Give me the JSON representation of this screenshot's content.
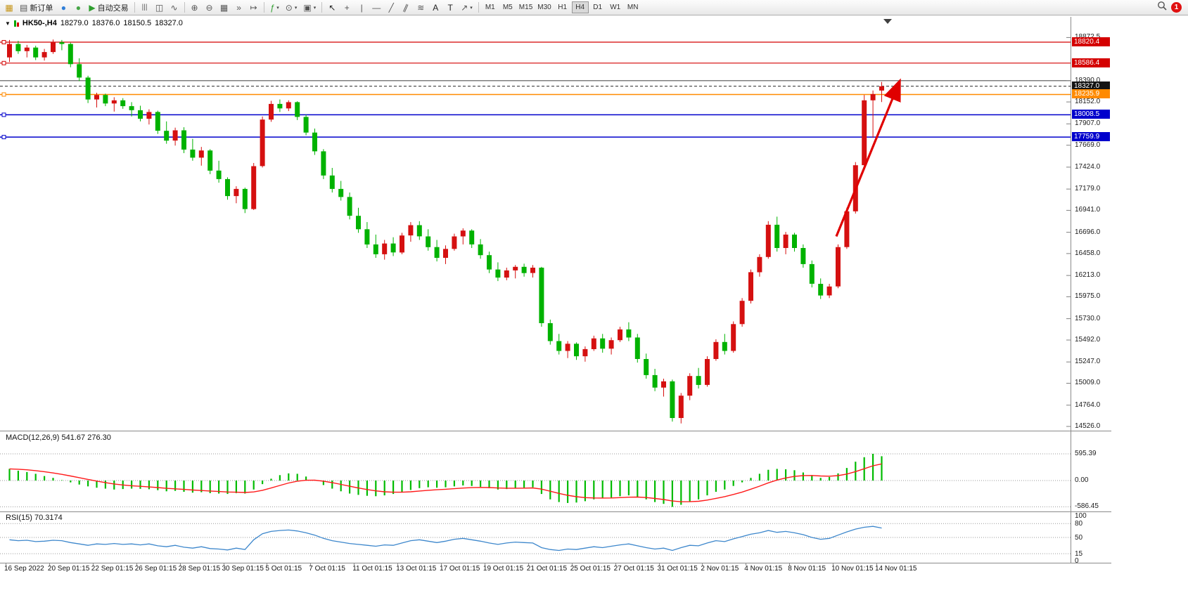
{
  "toolbar": {
    "new_order_label": "新订单",
    "autotrading_label": "自动交易",
    "timeframes": [
      "M1",
      "M5",
      "M15",
      "M30",
      "H1",
      "H4",
      "D1",
      "W1",
      "MN"
    ],
    "active_timeframe": "H4",
    "notification_badge": "1"
  },
  "icons": {
    "chart_window": "▦",
    "order_doc": "▤",
    "profile_dot": "●",
    "community_dot": "●",
    "play": "▶",
    "chart_bars": "|||",
    "chart_candles": "◫",
    "chart_line": "∿",
    "zoom_in": "⊕",
    "zoom_out": "⊖",
    "tile": "▦",
    "auto_scroll": "»",
    "chart_shift": "↦",
    "indicators": "ƒ",
    "periods": "⊙",
    "templates": "▣",
    "cursor": "↖",
    "crosshair": "+",
    "vline": "|",
    "hline": "—",
    "trendline": "╱",
    "channel": "∥",
    "fibonacci": "≋",
    "text": "A",
    "label": "T",
    "arrow_tool": "↗",
    "dropdown_arrow": "▾",
    "menu_arrow": "▼"
  },
  "chart": {
    "symbol_period": "HK50-,H4",
    "open": "18279.0",
    "high": "18376.0",
    "low": "18150.5",
    "close": "18327.0"
  },
  "price_axis": {
    "grid_labels": [
      {
        "p": 18872.5,
        "t": "18872.5"
      },
      {
        "p": 18390.0,
        "t": "18390.0"
      },
      {
        "p": 18152.0,
        "t": "18152.0"
      },
      {
        "p": 17907.0,
        "t": "17907.0"
      },
      {
        "p": 17669.0,
        "t": "17669.0"
      },
      {
        "p": 17424.0,
        "t": "17424.0"
      },
      {
        "p": 17179.0,
        "t": "17179.0"
      },
      {
        "p": 16941.0,
        "t": "16941.0"
      },
      {
        "p": 16696.0,
        "t": "16696.0"
      },
      {
        "p": 16458.0,
        "t": "16458.0"
      },
      {
        "p": 16213.0,
        "t": "16213.0"
      },
      {
        "p": 15975.0,
        "t": "15975.0"
      },
      {
        "p": 15730.0,
        "t": "15730.0"
      },
      {
        "p": 15492.0,
        "t": "15492.0"
      },
      {
        "p": 15247.0,
        "t": "15247.0"
      },
      {
        "p": 15009.0,
        "t": "15009.0"
      },
      {
        "p": 14764.0,
        "t": "14764.0"
      },
      {
        "p": 14526.0,
        "t": "14526.0"
      }
    ],
    "tag_labels": [
      {
        "p": 18820.4,
        "t": "18820.4",
        "bg": "#d40000"
      },
      {
        "p": 18586.4,
        "t": "18586.4",
        "bg": "#d40000"
      },
      {
        "p": 18327.0,
        "t": "18327.0",
        "bg": "#141414"
      },
      {
        "p": 18235.9,
        "t": "18235.9",
        "bg": "#ff8a00"
      },
      {
        "p": 18008.5,
        "t": "18008.5",
        "bg": "#0000cc"
      },
      {
        "p": 17759.9,
        "t": "17759.9",
        "bg": "#0000cc"
      }
    ]
  },
  "panels": {
    "macd": {
      "label": "MACD(12,26,9)",
      "value_main": "541.67",
      "value_signal": "276.30",
      "axis": [
        {
          "v": 595.39,
          "t": "595.39"
        },
        {
          "v": 0,
          "t": "0.00"
        },
        {
          "v": -586.45,
          "t": "-586.45"
        }
      ]
    },
    "rsi": {
      "label": "RSI(15)",
      "value": "70.3174",
      "axis": [
        {
          "v": 100,
          "t": "100"
        },
        {
          "v": 80,
          "t": "80"
        },
        {
          "v": 50,
          "t": "50"
        },
        {
          "v": 15,
          "t": "15"
        },
        {
          "v": 0,
          "t": "0"
        }
      ],
      "dotted_levels": [
        80,
        50,
        15
      ]
    }
  },
  "time_axis": [
    "16 Sep 2022",
    "20 Sep 01:15",
    "22 Sep 01:15",
    "26 Sep 01:15",
    "28 Sep 01:15",
    "30 Sep 01:15",
    "5 Oct 01:15",
    "7 Oct 01:15",
    "11 Oct 01:15",
    "13 Oct 01:15",
    "17 Oct 01:15",
    "19 Oct 01:15",
    "21 Oct 01:15",
    "25 Oct 01:15",
    "27 Oct 01:15",
    "31 Oct 01:15",
    "2 Nov 01:15",
    "4 Nov 01:15",
    "8 Nov 01:15",
    "10 Nov 01:15",
    "14 Nov 01:15"
  ],
  "chart_data": {
    "type": "candlestick",
    "symbol": "HK50-",
    "timeframe": "H4",
    "ylim": [
      14505,
      18990
    ],
    "colors": {
      "up": "#d51010",
      "down": "#00b200",
      "macd_bar": "#00bb00",
      "macd_signal": "#ff1a1a",
      "rsi_line": "#3d87cc",
      "arrow": "#e00000"
    },
    "hlines": [
      {
        "price": 18820.4,
        "color": "#d40000",
        "style": "solid",
        "w": 1.2,
        "handle": true
      },
      {
        "price": 18586.4,
        "color": "#d40000",
        "style": "solid",
        "w": 1.2,
        "handle": true
      },
      {
        "price": 18390.5,
        "color": "#555555",
        "style": "solid",
        "w": 1.2,
        "handle": false
      },
      {
        "price": 18327.0,
        "color": "#222222",
        "style": "dashed",
        "w": 1,
        "handle": false
      },
      {
        "price": 18235.9,
        "color": "#ff8a00",
        "style": "solid",
        "w": 1.5,
        "handle": true
      },
      {
        "price": 18008.5,
        "color": "#0000cc",
        "style": "solid",
        "w": 1.5,
        "handle": true
      },
      {
        "price": 17759.9,
        "color": "#0000cc",
        "style": "solid",
        "w": 1.5,
        "handle": true
      }
    ],
    "arrow": {
      "from": {
        "i": 94.8,
        "p": 16650
      },
      "to": {
        "i": 102,
        "p": 18370
      }
    },
    "candles": [
      [
        18650,
        18845,
        18600,
        18800
      ],
      [
        18800,
        18835,
        18690,
        18720
      ],
      [
        18720,
        18790,
        18650,
        18760
      ],
      [
        18760,
        18780,
        18620,
        18650
      ],
      [
        18650,
        18745,
        18615,
        18710
      ],
      [
        18710,
        18850,
        18690,
        18820
      ],
      [
        18820,
        18845,
        18730,
        18800
      ],
      [
        18800,
        18815,
        18540,
        18575
      ],
      [
        18575,
        18640,
        18385,
        18425
      ],
      [
        18425,
        18445,
        18140,
        18180
      ],
      [
        18180,
        18255,
        18090,
        18230
      ],
      [
        18230,
        18245,
        18105,
        18135
      ],
      [
        18135,
        18205,
        18045,
        18170
      ],
      [
        18170,
        18195,
        18075,
        18105
      ],
      [
        18105,
        18150,
        17990,
        18060
      ],
      [
        18060,
        18110,
        17935,
        17965
      ],
      [
        17965,
        18070,
        17900,
        18040
      ],
      [
        18040,
        18055,
        17795,
        17830
      ],
      [
        17830,
        17935,
        17685,
        17720
      ],
      [
        17720,
        17865,
        17665,
        17835
      ],
      [
        17835,
        17870,
        17580,
        17620
      ],
      [
        17620,
        17740,
        17495,
        17530
      ],
      [
        17530,
        17650,
        17440,
        17610
      ],
      [
        17610,
        17625,
        17345,
        17385
      ],
      [
        17385,
        17495,
        17250,
        17290
      ],
      [
        17290,
        17310,
        17060,
        17100
      ],
      [
        17100,
        17210,
        17020,
        17180
      ],
      [
        17180,
        17195,
        16910,
        16955
      ],
      [
        16955,
        17470,
        16945,
        17435
      ],
      [
        17435,
        17990,
        17420,
        17955
      ],
      [
        17955,
        18165,
        17930,
        18130
      ],
      [
        18130,
        18180,
        18040,
        18080
      ],
      [
        18080,
        18170,
        18050,
        18150
      ],
      [
        18150,
        18160,
        17950,
        17985
      ],
      [
        17985,
        18010,
        17780,
        17810
      ],
      [
        17810,
        17855,
        17560,
        17600
      ],
      [
        17600,
        17625,
        17290,
        17330
      ],
      [
        17330,
        17415,
        17140,
        17180
      ],
      [
        17180,
        17270,
        17050,
        17090
      ],
      [
        17090,
        17140,
        16840,
        16880
      ],
      [
        16880,
        16970,
        16690,
        16730
      ],
      [
        16730,
        16810,
        16520,
        16560
      ],
      [
        16560,
        16670,
        16410,
        16450
      ],
      [
        16450,
        16610,
        16390,
        16570
      ],
      [
        16570,
        16640,
        16430,
        16470
      ],
      [
        16470,
        16690,
        16450,
        16660
      ],
      [
        16660,
        16810,
        16590,
        16775
      ],
      [
        16775,
        16820,
        16610,
        16650
      ],
      [
        16650,
        16730,
        16490,
        16530
      ],
      [
        16530,
        16610,
        16370,
        16410
      ],
      [
        16410,
        16550,
        16340,
        16510
      ],
      [
        16510,
        16680,
        16490,
        16650
      ],
      [
        16650,
        16740,
        16560,
        16715
      ],
      [
        16715,
        16730,
        16520,
        16560
      ],
      [
        16560,
        16620,
        16400,
        16440
      ],
      [
        16440,
        16480,
        16240,
        16280
      ],
      [
        16280,
        16360,
        16150,
        16190
      ],
      [
        16190,
        16300,
        16160,
        16270
      ],
      [
        16270,
        16330,
        16180,
        16310
      ],
      [
        16310,
        16345,
        16200,
        16240
      ],
      [
        16240,
        16330,
        16190,
        16300
      ],
      [
        16300,
        16310,
        15640,
        15680
      ],
      [
        15680,
        15720,
        15440,
        15480
      ],
      [
        15480,
        15560,
        15330,
        15370
      ],
      [
        15370,
        15480,
        15290,
        15450
      ],
      [
        15450,
        15465,
        15270,
        15310
      ],
      [
        15310,
        15420,
        15250,
        15390
      ],
      [
        15390,
        15540,
        15370,
        15510
      ],
      [
        15510,
        15560,
        15350,
        15395
      ],
      [
        15395,
        15520,
        15330,
        15490
      ],
      [
        15490,
        15640,
        15470,
        15610
      ],
      [
        15610,
        15690,
        15480,
        15520
      ],
      [
        15520,
        15560,
        15240,
        15280
      ],
      [
        15280,
        15340,
        15060,
        15100
      ],
      [
        15100,
        15170,
        14920,
        14960
      ],
      [
        14960,
        15060,
        14860,
        15030
      ],
      [
        15030,
        15050,
        14580,
        14620
      ],
      [
        14620,
        14900,
        14560,
        14870
      ],
      [
        14870,
        15120,
        14820,
        15090
      ],
      [
        15090,
        15180,
        14950,
        14990
      ],
      [
        14990,
        15310,
        14970,
        15280
      ],
      [
        15280,
        15500,
        15260,
        15470
      ],
      [
        15470,
        15560,
        15330,
        15370
      ],
      [
        15370,
        15700,
        15350,
        15670
      ],
      [
        15670,
        15960,
        15640,
        15930
      ],
      [
        15930,
        16280,
        15900,
        16250
      ],
      [
        16250,
        16450,
        16200,
        16420
      ],
      [
        16420,
        16820,
        16400,
        16780
      ],
      [
        16780,
        16870,
        16480,
        16520
      ],
      [
        16520,
        16700,
        16450,
        16670
      ],
      [
        16670,
        16690,
        16480,
        16520
      ],
      [
        16520,
        16560,
        16300,
        16340
      ],
      [
        16340,
        16380,
        16080,
        16120
      ],
      [
        16120,
        16180,
        15950,
        15990
      ],
      [
        15990,
        16120,
        15960,
        16090
      ],
      [
        16090,
        16560,
        16070,
        16530
      ],
      [
        16530,
        16970,
        16510,
        16930
      ],
      [
        16930,
        17480,
        16905,
        17445
      ],
      [
        17445,
        18230,
        17440,
        18170
      ],
      [
        18170,
        18280,
        17750,
        18240
      ],
      [
        18279,
        18376,
        18150.5,
        18327
      ]
    ],
    "macd_histogram": [
      260,
      220,
      190,
      150,
      100,
      60,
      10,
      -40,
      -90,
      -130,
      -160,
      -180,
      -200,
      -190,
      -180,
      -185,
      -195,
      -215,
      -240,
      -230,
      -250,
      -270,
      -260,
      -280,
      -290,
      -300,
      -280,
      -290,
      -200,
      -80,
      40,
      120,
      160,
      150,
      90,
      10,
      -100,
      -180,
      -240,
      -290,
      -320,
      -340,
      -350,
      -330,
      -300,
      -260,
      -210,
      -170,
      -150,
      -160,
      -150,
      -130,
      -110,
      -120,
      -140,
      -170,
      -200,
      -190,
      -170,
      -160,
      -150,
      -300,
      -420,
      -480,
      -500,
      -490,
      -460,
      -420,
      -400,
      -380,
      -350,
      -330,
      -360,
      -420,
      -480,
      -520,
      -586.45,
      -540,
      -470,
      -420,
      -330,
      -250,
      -200,
      -120,
      -40,
      60,
      150,
      240,
      260,
      250,
      230,
      180,
      120,
      60,
      80,
      160,
      280,
      420,
      520,
      595.39,
      541.67
    ],
    "rsi": [
      45,
      43,
      44,
      41,
      42,
      44,
      43,
      39,
      36,
      33,
      36,
      35,
      37,
      35,
      36,
      34,
      36,
      32,
      30,
      33,
      29,
      27,
      30,
      26,
      25,
      23,
      27,
      24,
      45,
      58,
      63,
      65,
      66,
      64,
      60,
      55,
      48,
      43,
      40,
      37,
      35,
      33,
      31,
      34,
      33,
      38,
      43,
      45,
      42,
      39,
      42,
      46,
      48,
      45,
      42,
      38,
      35,
      38,
      40,
      39,
      38,
      28,
      24,
      22,
      25,
      24,
      27,
      30,
      28,
      31,
      34,
      36,
      32,
      28,
      25,
      27,
      22,
      28,
      33,
      32,
      38,
      43,
      41,
      47,
      52,
      57,
      60,
      65,
      61,
      63,
      60,
      56,
      50,
      46,
      48,
      55,
      62,
      68,
      72,
      74,
      70.32
    ]
  }
}
